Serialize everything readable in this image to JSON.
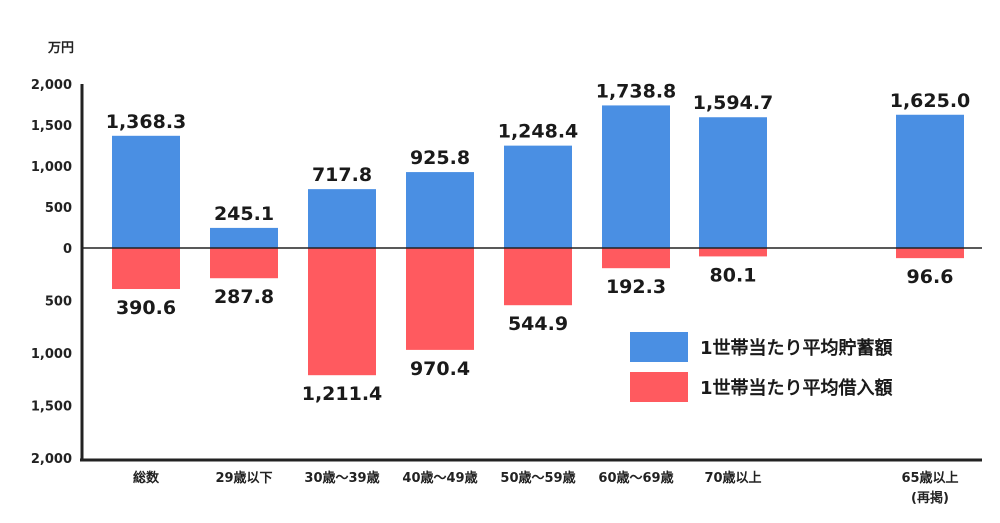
{
  "chart_data": {
    "type": "bar",
    "unit_label": "万円",
    "ylim_positive": [
      0,
      2000
    ],
    "ylim_negative": [
      0,
      2000
    ],
    "yticks_positive": [
      "2,000",
      "1,500",
      "1,000",
      "500",
      "0"
    ],
    "yticks_negative": [
      "500",
      "1,000",
      "1,500",
      "2,000"
    ],
    "categories": [
      "総数",
      "29歳以下",
      "30歳～39歳",
      "40歳～49歳",
      "50歳～59歳",
      "60歳～69歳",
      "70歳以上",
      "65歳以上"
    ],
    "category_sublabels": [
      "",
      "",
      "",
      "",
      "",
      "",
      "",
      "(再掲)"
    ],
    "series": [
      {
        "name": "1世帯当たり平均貯蓄額",
        "color": "#4a8fe3",
        "direction": "up",
        "values": [
          1368.3,
          245.1,
          717.8,
          925.8,
          1248.4,
          1738.8,
          1594.7,
          1625.0
        ],
        "labels": [
          "1,368.3",
          "245.1",
          "717.8",
          "925.8",
          "1,248.4",
          "1,738.8",
          "1,594.7",
          "1,625.0"
        ]
      },
      {
        "name": "1世帯当たり平均借入額",
        "color": "#ff5a5f",
        "direction": "down",
        "values": [
          390.6,
          287.8,
          1211.4,
          970.4,
          544.9,
          192.3,
          80.1,
          96.6
        ],
        "labels": [
          "390.6",
          "287.8",
          "1,211.4",
          "970.4",
          "544.9",
          "192.3",
          "80.1",
          "96.6"
        ]
      }
    ]
  }
}
